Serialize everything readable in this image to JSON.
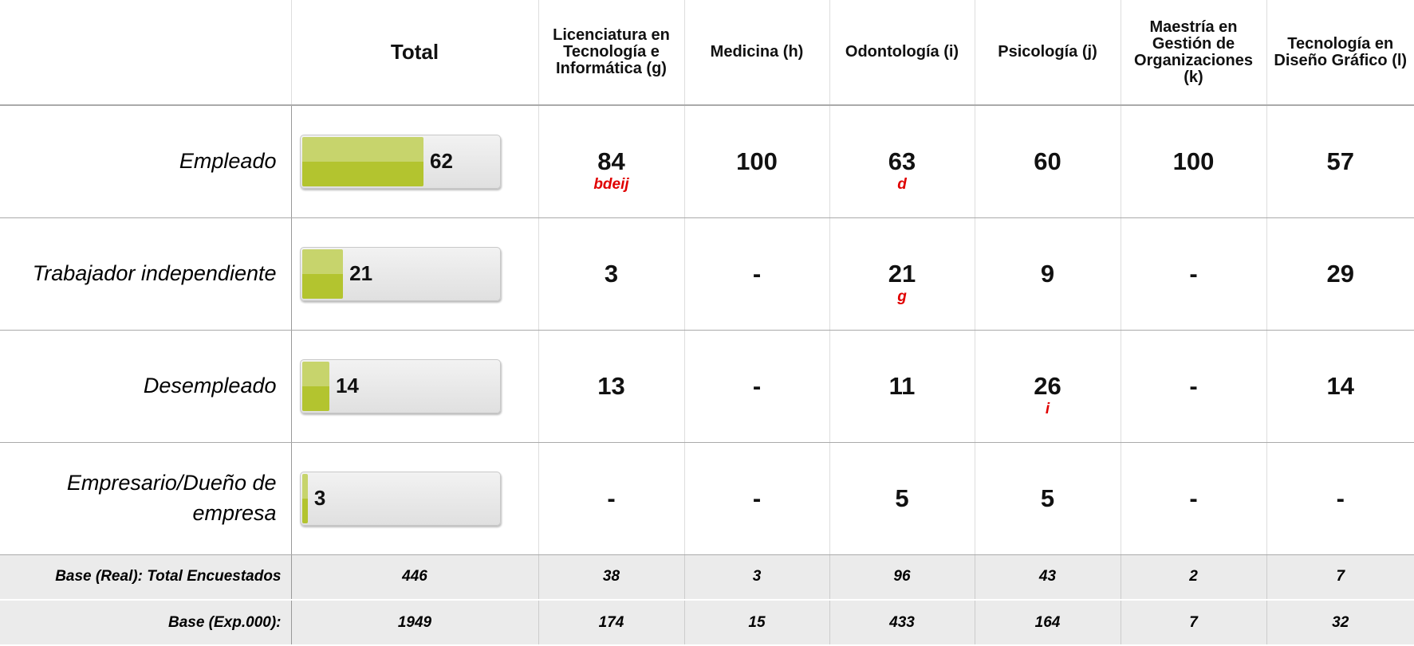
{
  "header": {
    "columns": [
      "Total",
      "Licenciatura en Tecnología e Informática (g)",
      "Medicina (h)",
      "Odontología (i)",
      "Psicología (j)",
      "Maestría en Gestión de Organizaciones (k)",
      "Tecnología en Diseño Gráfico (l)"
    ]
  },
  "rows": [
    {
      "label": "Empleado",
      "total": 62,
      "cells": [
        {
          "value": 84,
          "sig": "bdeij"
        },
        {
          "value": 100
        },
        {
          "value": 63,
          "sig": "d"
        },
        {
          "value": 60
        },
        {
          "value": 100
        },
        {
          "value": 57
        }
      ]
    },
    {
      "label": "Trabajador independiente",
      "total": 21,
      "cells": [
        {
          "value": 3
        },
        {
          "value": "-"
        },
        {
          "value": 21,
          "sig": "g"
        },
        {
          "value": 9
        },
        {
          "value": "-"
        },
        {
          "value": 29
        }
      ]
    },
    {
      "label": "Desempleado",
      "total": 14,
      "cells": [
        {
          "value": 13
        },
        {
          "value": "-"
        },
        {
          "value": 11
        },
        {
          "value": 26,
          "sig": "i"
        },
        {
          "value": "-"
        },
        {
          "value": 14
        }
      ]
    },
    {
      "label": "Empresario/Dueño de empresa",
      "total": 3,
      "cells": [
        {
          "value": "-"
        },
        {
          "value": "-"
        },
        {
          "value": 5
        },
        {
          "value": 5
        },
        {
          "value": "-"
        },
        {
          "value": "-"
        }
      ]
    }
  ],
  "bases": [
    {
      "label": "Base (Real): Total Encuestados",
      "values": [
        446,
        38,
        3,
        96,
        43,
        2,
        7
      ]
    },
    {
      "label": "Base (Exp.000):",
      "values": [
        1949,
        174,
        15,
        433,
        164,
        7,
        32
      ]
    }
  ]
}
